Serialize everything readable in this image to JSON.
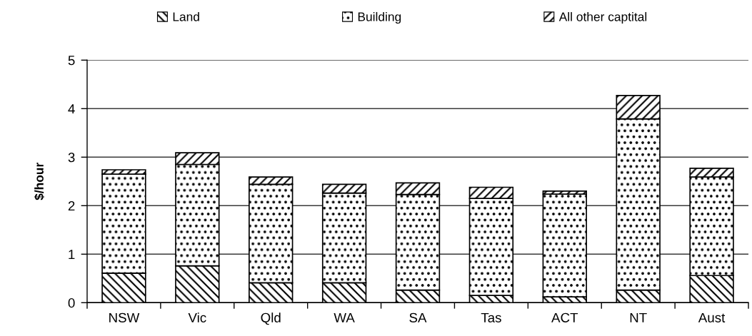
{
  "chart_data": {
    "type": "bar",
    "stacked": true,
    "ylabel": "$/hour",
    "categories": [
      "NSW",
      "Vic",
      "Qld",
      "WA",
      "SA",
      "Tas",
      "ACT",
      "NT",
      "Aust"
    ],
    "series": [
      {
        "name": "Land",
        "color": "#000000",
        "values": [
          0.61,
          0.76,
          0.41,
          0.41,
          0.26,
          0.15,
          0.12,
          0.26,
          0.56
        ]
      },
      {
        "name": "Building",
        "color": "#000000",
        "values": [
          2.04,
          2.09,
          2.03,
          1.85,
          1.97,
          2.0,
          2.12,
          3.53,
          2.03
        ]
      },
      {
        "name": "All other captital",
        "color": "#000000",
        "values": [
          0.09,
          0.24,
          0.15,
          0.18,
          0.24,
          0.23,
          0.06,
          0.48,
          0.18
        ]
      }
    ],
    "ylim": [
      0,
      5
    ],
    "yticks": [
      0,
      1,
      2,
      3,
      4,
      5
    ],
    "grid": "y",
    "legend": "top"
  }
}
